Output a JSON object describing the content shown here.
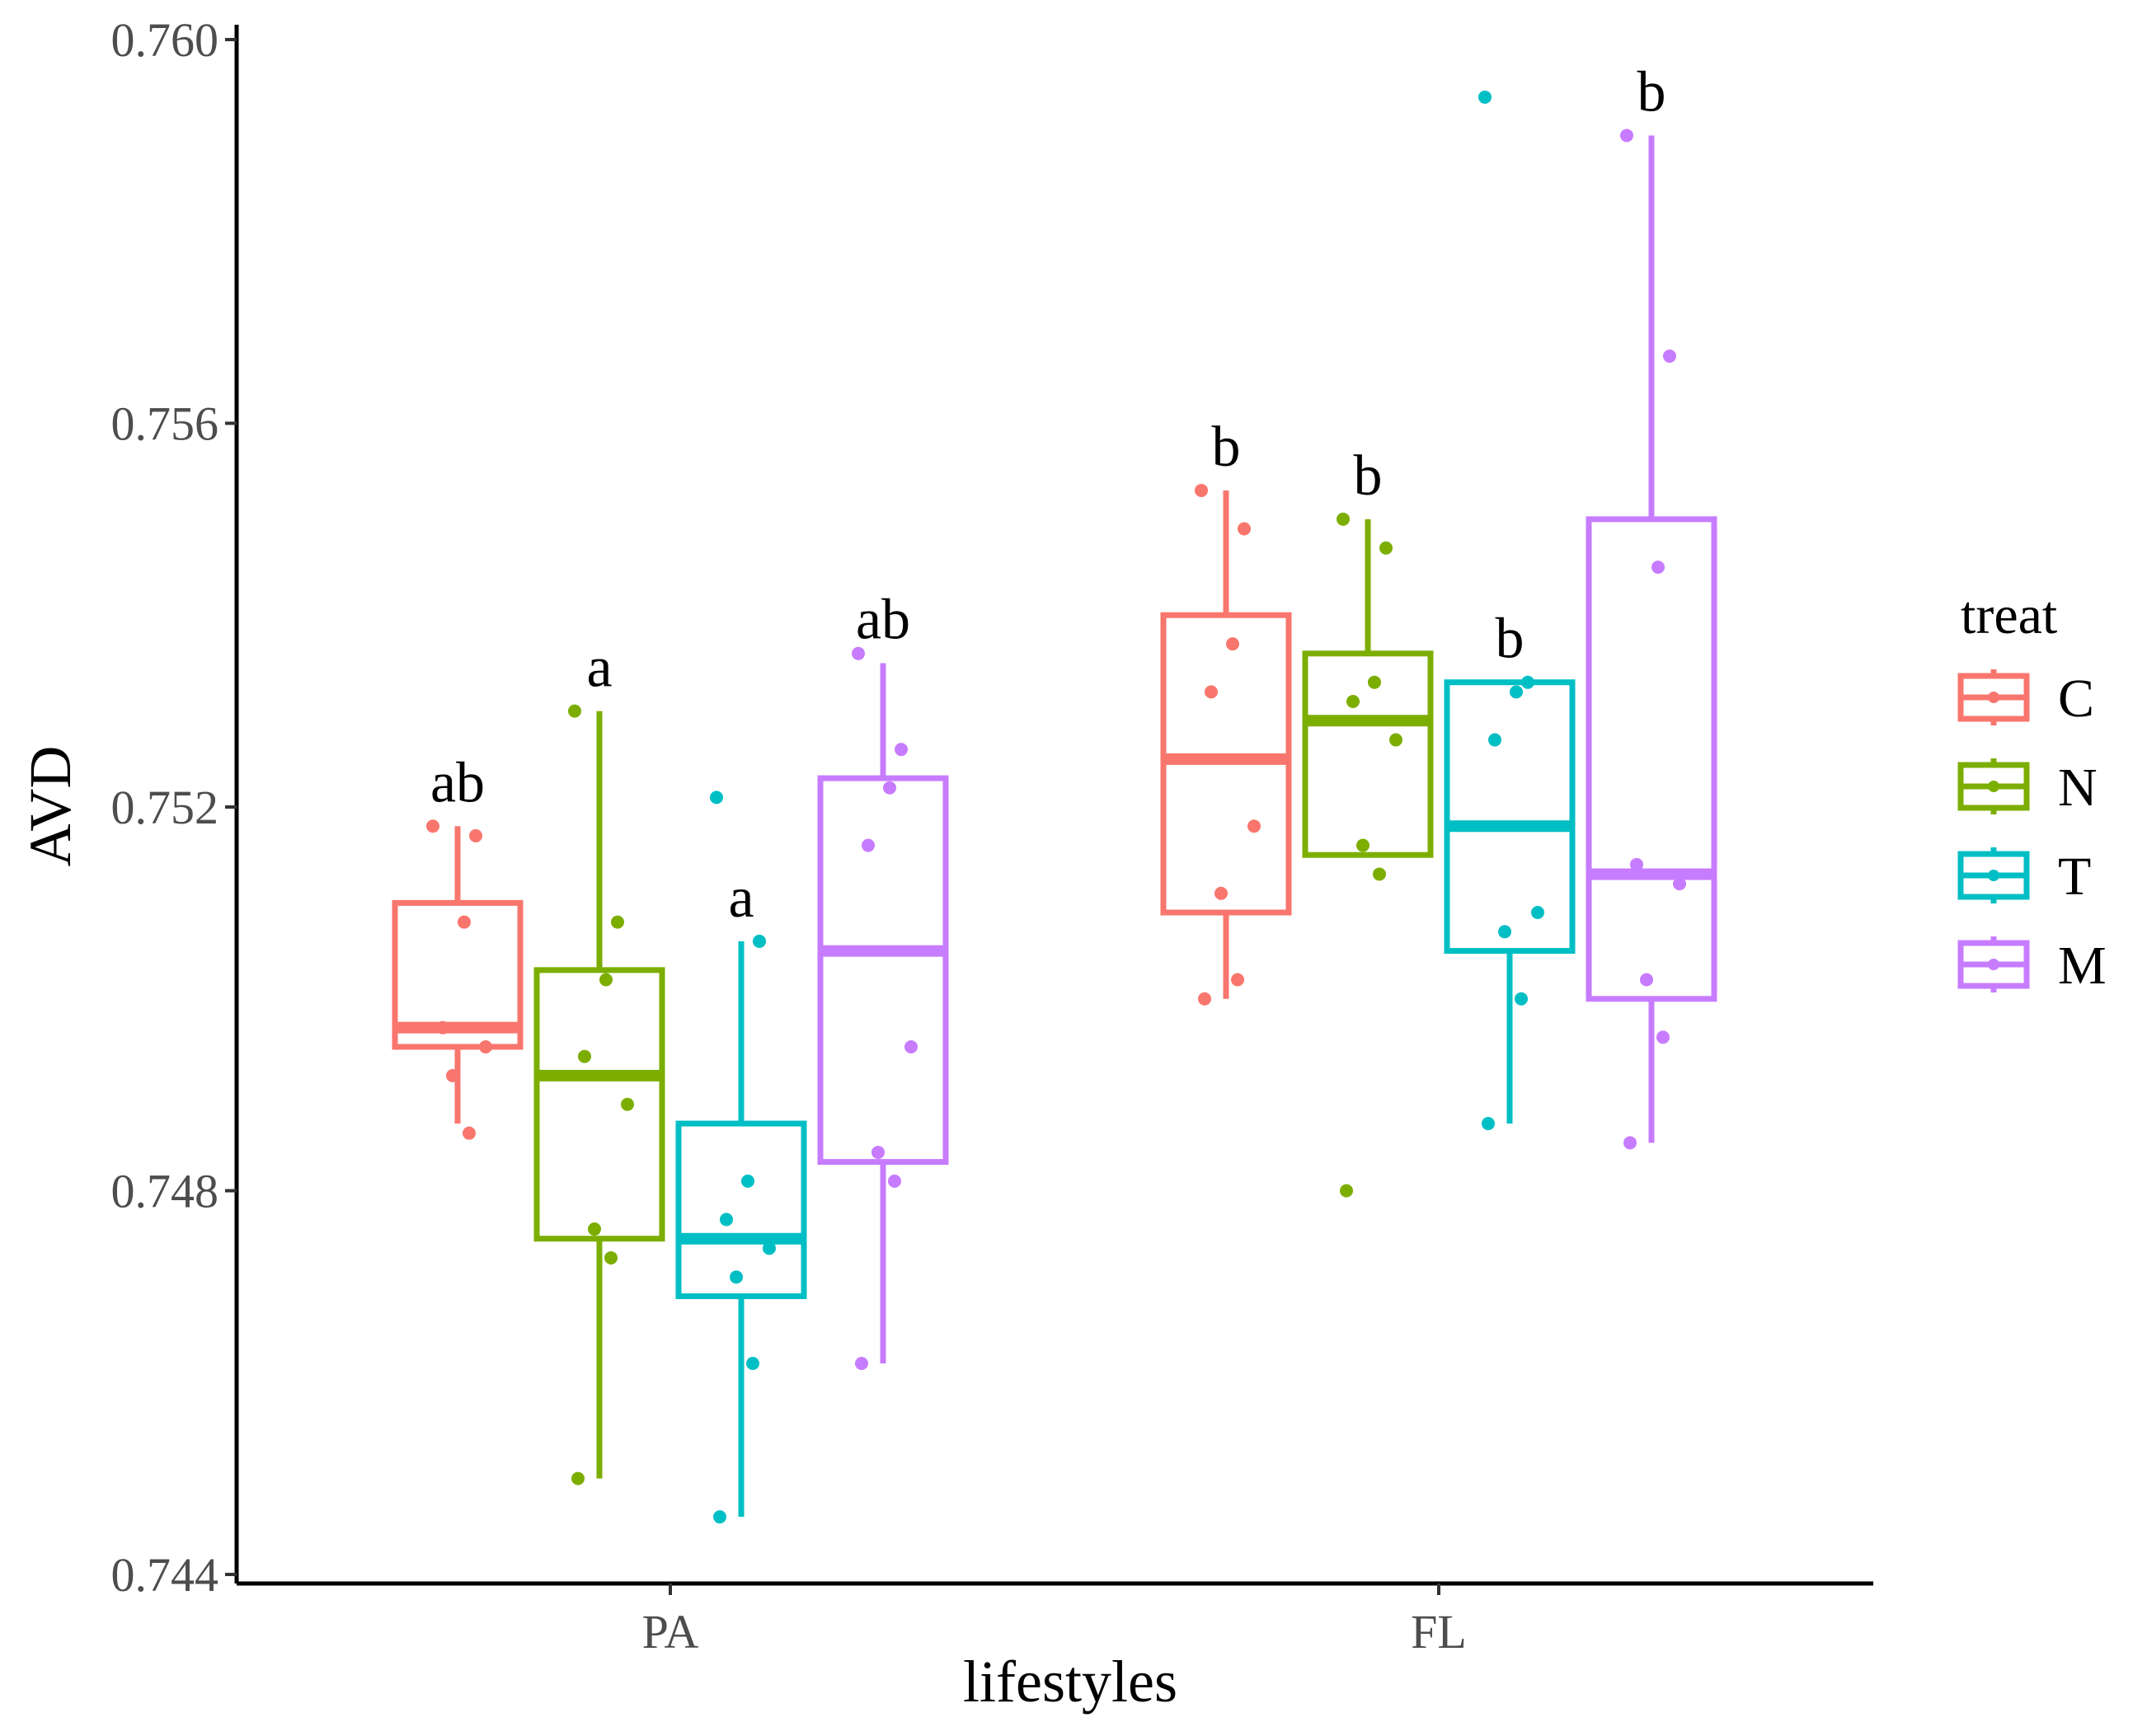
{
  "chart_data": {
    "type": "boxplot",
    "title": "",
    "xlabel": "lifestyles",
    "ylabel": "AVD",
    "ylim": [
      0.744,
      0.76
    ],
    "y_ticks": [
      "0.744",
      "0.748",
      "0.752",
      "0.756",
      "0.760"
    ],
    "y_tick_values": [
      0.744,
      0.748,
      0.752,
      0.756,
      0.76
    ],
    "categories": [
      "PA",
      "FL"
    ],
    "legend": {
      "title": "treat",
      "position": "right",
      "entries": [
        {
          "label": "C",
          "color": "#F8766D"
        },
        {
          "label": "N",
          "color": "#7CAE00"
        },
        {
          "label": "T",
          "color": "#00BFC4"
        },
        {
          "label": "M",
          "color": "#C77CFF"
        }
      ]
    },
    "series": [
      {
        "name": "C",
        "color": "#F8766D",
        "boxes": [
          {
            "category": "PA",
            "min": 0.7487,
            "q1": 0.7495,
            "median": 0.7497,
            "q3": 0.751,
            "max": 0.7518,
            "label": "ab",
            "points": [
              0.7518,
              0.7517,
              0.7508,
              0.7497,
              0.7495,
              0.7492,
              0.7486
            ]
          },
          {
            "category": "FL",
            "min": 0.75,
            "q1": 0.7509,
            "median": 0.7525,
            "q3": 0.754,
            "max": 0.7553,
            "label": "b",
            "points": [
              0.7553,
              0.7549,
              0.7537,
              0.7532,
              0.7518,
              0.7511,
              0.7502,
              0.75
            ]
          }
        ]
      },
      {
        "name": "N",
        "color": "#7CAE00",
        "boxes": [
          {
            "category": "PA",
            "min": 0.745,
            "q1": 0.7475,
            "median": 0.7492,
            "q3": 0.7503,
            "max": 0.753,
            "label": "a",
            "points": [
              0.753,
              0.7508,
              0.7502,
              0.7494,
              0.7489,
              0.7476,
              0.7473,
              0.745
            ]
          },
          {
            "category": "FL",
            "min": 0.7515,
            "q1": 0.7515,
            "median": 0.7529,
            "q3": 0.7536,
            "max": 0.755,
            "label": "b",
            "points": [
              0.755,
              0.7547,
              0.7533,
              0.7531,
              0.7527,
              0.7516,
              0.7513,
              0.748
            ]
          }
        ]
      },
      {
        "name": "T",
        "color": "#00BFC4",
        "boxes": [
          {
            "category": "PA",
            "min": 0.7446,
            "q1": 0.7469,
            "median": 0.7475,
            "q3": 0.7487,
            "max": 0.7506,
            "label": "a",
            "points": [
              0.7521,
              0.7506,
              0.7481,
              0.7477,
              0.7474,
              0.7471,
              0.7462,
              0.7446
            ]
          },
          {
            "category": "FL",
            "min": 0.7487,
            "q1": 0.7505,
            "median": 0.7518,
            "q3": 0.7533,
            "max": 0.7533,
            "label": "b",
            "points": [
              0.7594,
              0.7533,
              0.7532,
              0.7527,
              0.7509,
              0.7507,
              0.75,
              0.7487
            ]
          }
        ]
      },
      {
        "name": "M",
        "color": "#C77CFF",
        "boxes": [
          {
            "category": "PA",
            "min": 0.7462,
            "q1": 0.7483,
            "median": 0.7505,
            "q3": 0.7523,
            "max": 0.7535,
            "label": "ab",
            "points": [
              0.7536,
              0.7526,
              0.7522,
              0.7516,
              0.7495,
              0.7484,
              0.7481,
              0.7462
            ]
          },
          {
            "category": "FL",
            "min": 0.7485,
            "q1": 0.75,
            "median": 0.7513,
            "q3": 0.755,
            "max": 0.759,
            "label": "b",
            "points": [
              0.759,
              0.7567,
              0.7545,
              0.7514,
              0.7512,
              0.7502,
              0.7496,
              0.7485
            ]
          }
        ]
      }
    ]
  }
}
